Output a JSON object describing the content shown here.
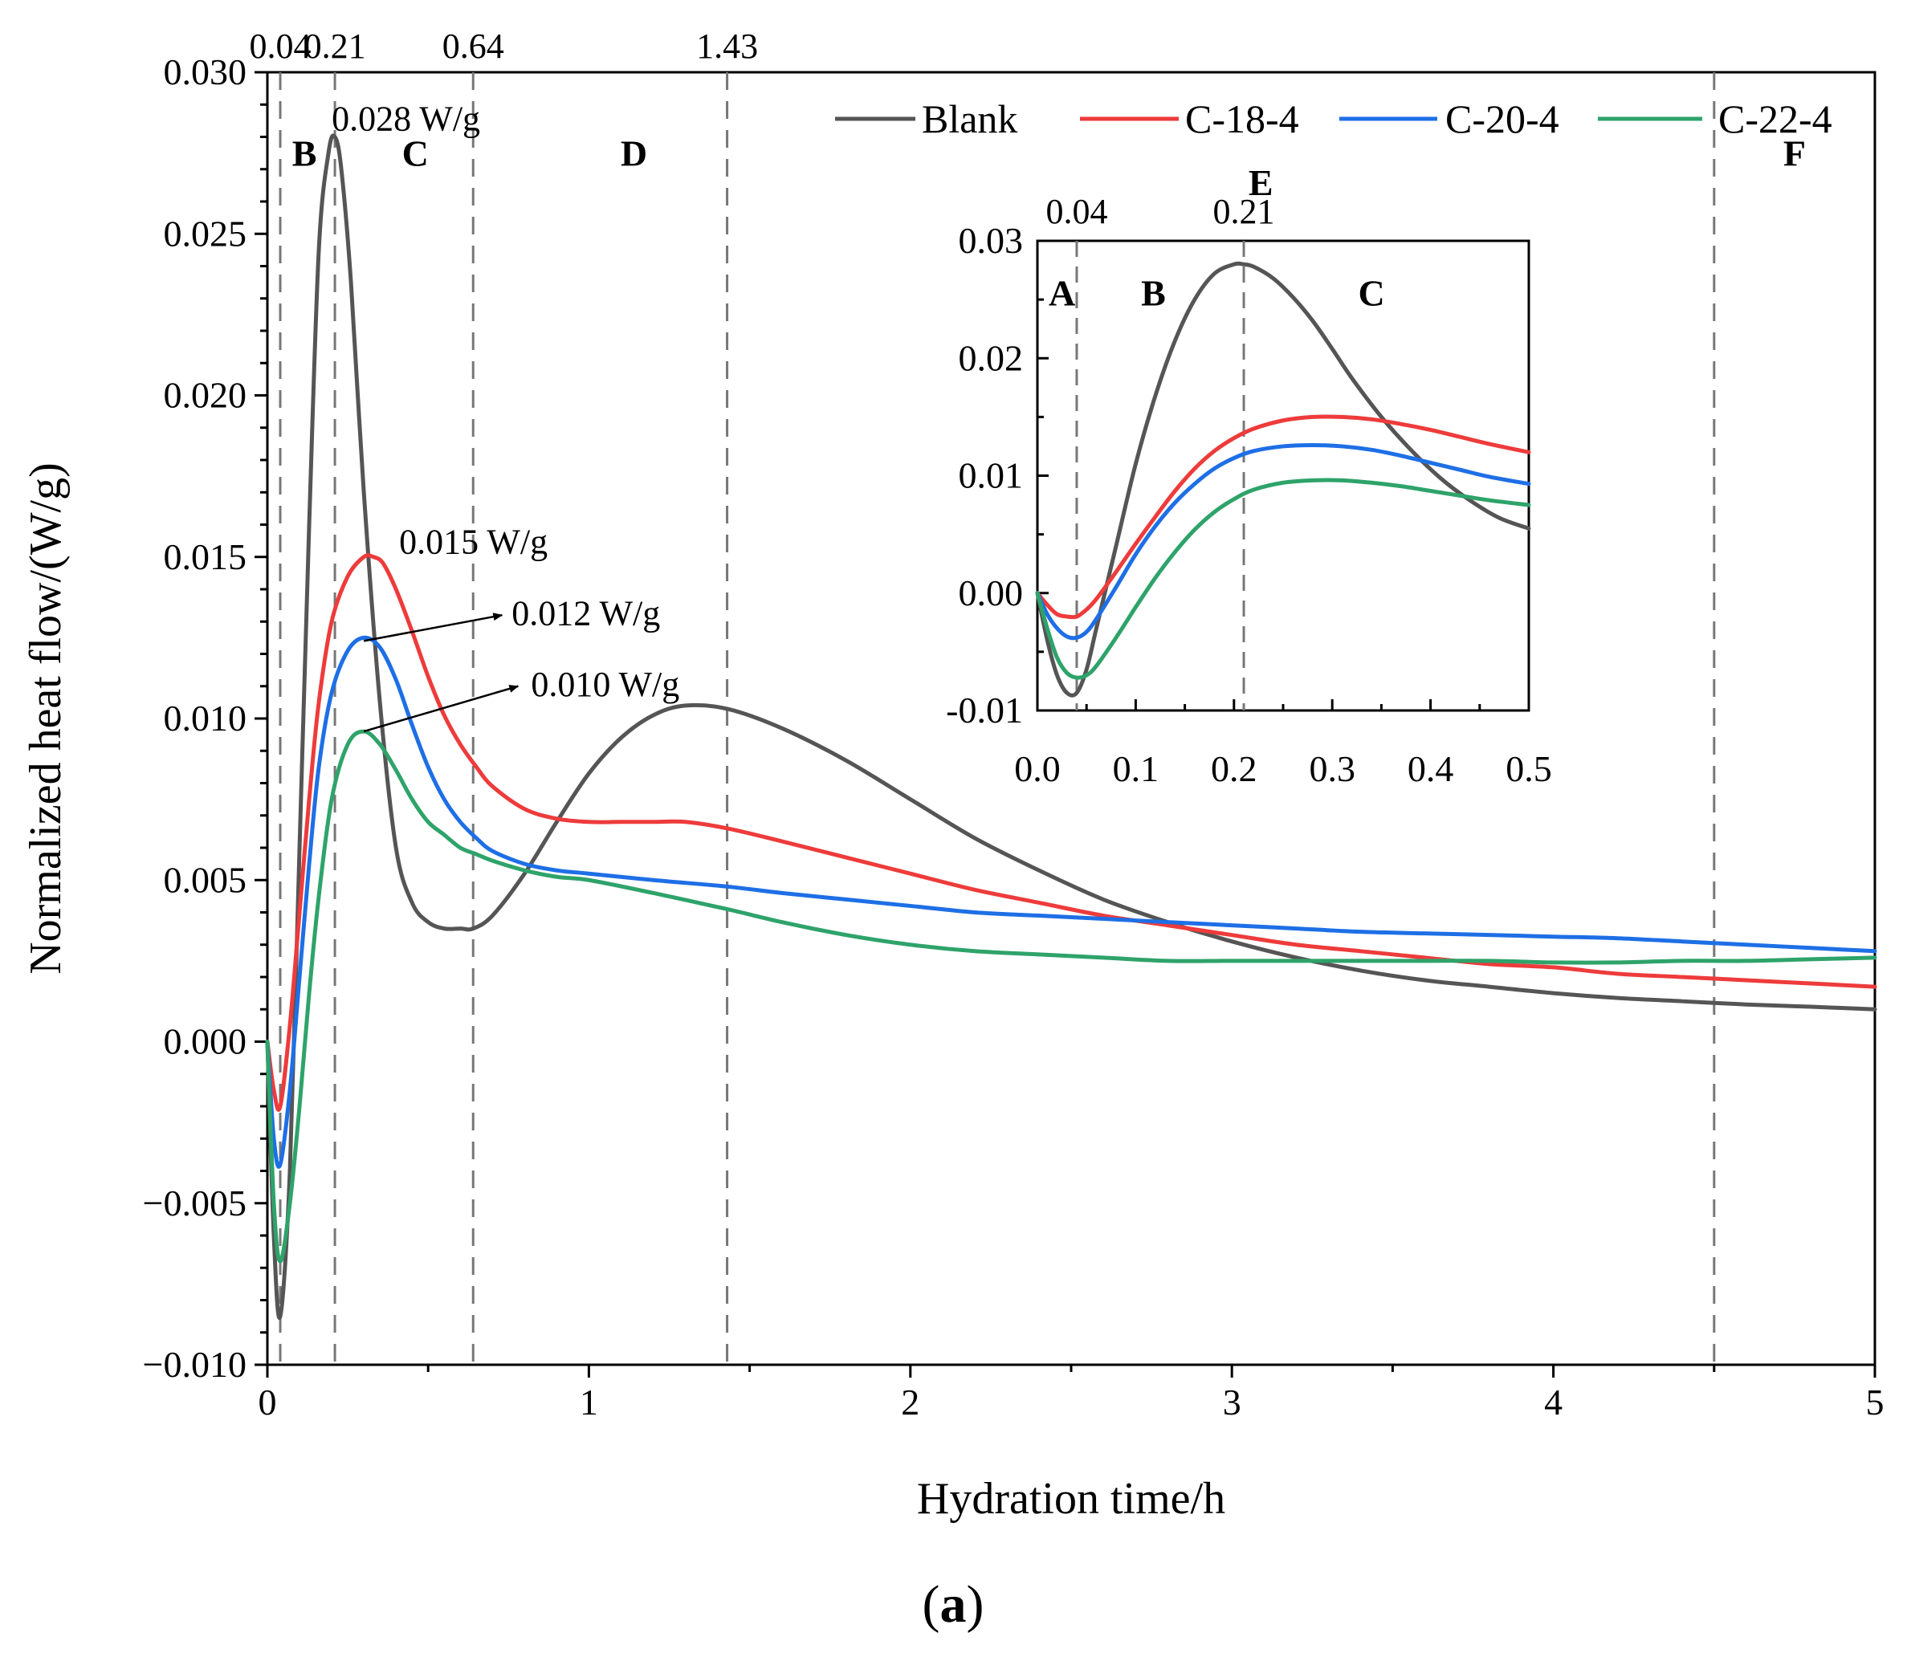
{
  "chart_data": [
    {
      "id": "main",
      "type": "line",
      "xlabel": "Hydration time/h",
      "ylabel": "Normalized heat flow/(W/g)",
      "xlim": [
        0,
        5
      ],
      "ylim": [
        -0.01,
        0.03
      ],
      "x_ticks": [
        0,
        1,
        2,
        3,
        4,
        5
      ],
      "x_tick_labels": [
        "0",
        "1",
        "2",
        "3",
        "4",
        "5"
      ],
      "y_ticks": [
        -0.01,
        -0.005,
        0,
        0.005,
        0.01,
        0.015,
        0.02,
        0.025,
        0.03
      ],
      "y_tick_labels": [
        "−0.010",
        "−0.005",
        "0.000",
        "0.005",
        "0.010",
        "0.015",
        "0.020",
        "0.025",
        "0.030"
      ],
      "vlines": [
        {
          "x": 0.04,
          "label": "0.04"
        },
        {
          "x": 0.21,
          "label": "0.21"
        },
        {
          "x": 0.64,
          "label": "0.64"
        },
        {
          "x": 1.43,
          "label": "1.43"
        },
        {
          "x": 4.5,
          "label": ""
        }
      ],
      "regions": [
        {
          "label": "B",
          "x": 0.115,
          "y": 0.0271
        },
        {
          "label": "C",
          "x": 0.46,
          "y": 0.0271
        },
        {
          "label": "D",
          "x": 1.14,
          "y": 0.0271
        },
        {
          "label": "E",
          "x": 3.09,
          "y": 0.0262
        },
        {
          "label": "F",
          "x": 4.75,
          "y": 0.0271
        }
      ],
      "annotations": [
        {
          "text": "0.028 W/g",
          "x": 0.2,
          "y": 0.0282
        },
        {
          "text": "0.015 W/g",
          "x": 0.41,
          "y": 0.0151
        },
        {
          "text": "0.012 W/g",
          "x": 0.76,
          "y": 0.0129,
          "arrow_from": [
            0.3,
            0.0124
          ],
          "arrow_to": [
            0.73,
            0.0132
          ]
        },
        {
          "text": "0.010 W/g",
          "x": 0.82,
          "y": 0.0107,
          "arrow_from": [
            0.3,
            0.0096
          ],
          "arrow_to": [
            0.78,
            0.011
          ]
        }
      ],
      "legend": {
        "position": "top-right",
        "orientation": "horizontal"
      },
      "series": [
        {
          "name": "Blank",
          "color": "#555555",
          "x": [
            0,
            0.02,
            0.04,
            0.07,
            0.1,
            0.13,
            0.16,
            0.19,
            0.21,
            0.23,
            0.26,
            0.3,
            0.35,
            0.4,
            0.45,
            0.5,
            0.55,
            0.6,
            0.64,
            0.7,
            0.8,
            0.9,
            1.0,
            1.1,
            1.2,
            1.3,
            1.43,
            1.6,
            1.8,
            2.0,
            2.2,
            2.4,
            2.6,
            2.8,
            3.0,
            3.2,
            3.4,
            3.6,
            3.8,
            4.0,
            4.2,
            4.4,
            4.6,
            4.8,
            5.0
          ],
          "y": [
            0.0,
            -0.006,
            -0.0085,
            -0.004,
            0.006,
            0.016,
            0.0245,
            0.0275,
            0.028,
            0.027,
            0.0235,
            0.017,
            0.0105,
            0.006,
            0.0043,
            0.0037,
            0.0035,
            0.0035,
            0.0035,
            0.0039,
            0.0052,
            0.0068,
            0.0083,
            0.0094,
            0.0101,
            0.0104,
            0.0103,
            0.0097,
            0.0087,
            0.0075,
            0.0063,
            0.0053,
            0.0044,
            0.0037,
            0.0031,
            0.0026,
            0.0022,
            0.0019,
            0.0017,
            0.0015,
            0.00135,
            0.00125,
            0.00115,
            0.00108,
            0.001
          ]
        },
        {
          "name": "C-18-4",
          "color": "#ee3b3b",
          "x": [
            0,
            0.02,
            0.04,
            0.07,
            0.1,
            0.13,
            0.16,
            0.2,
            0.25,
            0.3,
            0.33,
            0.36,
            0.4,
            0.45,
            0.5,
            0.55,
            0.6,
            0.65,
            0.7,
            0.8,
            0.9,
            1.0,
            1.1,
            1.2,
            1.3,
            1.43,
            1.6,
            1.8,
            2.0,
            2.2,
            2.4,
            2.6,
            2.8,
            3.0,
            3.2,
            3.4,
            3.6,
            3.8,
            4.0,
            4.2,
            4.4,
            4.6,
            4.8,
            5.0
          ],
          "y": [
            0.0,
            -0.0015,
            -0.002,
            0.0005,
            0.004,
            0.0075,
            0.0105,
            0.013,
            0.0144,
            0.015,
            0.015,
            0.0148,
            0.014,
            0.0127,
            0.0113,
            0.0101,
            0.0092,
            0.0085,
            0.0079,
            0.0072,
            0.0069,
            0.0068,
            0.0068,
            0.0068,
            0.0068,
            0.0066,
            0.0062,
            0.0057,
            0.0052,
            0.0047,
            0.0043,
            0.0039,
            0.0036,
            0.0033,
            0.003,
            0.0028,
            0.0026,
            0.0024,
            0.0023,
            0.0021,
            0.002,
            0.0019,
            0.0018,
            0.0017
          ]
        },
        {
          "name": "C-20-4",
          "color": "#1e6fe6",
          "x": [
            0,
            0.02,
            0.04,
            0.07,
            0.1,
            0.13,
            0.16,
            0.2,
            0.25,
            0.3,
            0.35,
            0.4,
            0.45,
            0.5,
            0.55,
            0.6,
            0.65,
            0.7,
            0.8,
            0.9,
            1.0,
            1.2,
            1.43,
            1.6,
            1.8,
            2.0,
            2.2,
            2.4,
            2.6,
            2.8,
            3.0,
            3.2,
            3.4,
            3.6,
            3.8,
            4.0,
            4.2,
            4.4,
            4.6,
            4.8,
            5.0
          ],
          "y": [
            0.0,
            -0.003,
            -0.0038,
            -0.0015,
            0.002,
            0.0055,
            0.0085,
            0.0108,
            0.0121,
            0.0125,
            0.0122,
            0.0112,
            0.0098,
            0.0085,
            0.0075,
            0.0068,
            0.0063,
            0.0059,
            0.0055,
            0.0053,
            0.0052,
            0.005,
            0.0048,
            0.0046,
            0.0044,
            0.0042,
            0.004,
            0.0039,
            0.0038,
            0.0037,
            0.0036,
            0.0035,
            0.0034,
            0.00335,
            0.0033,
            0.00325,
            0.0032,
            0.0031,
            0.003,
            0.0029,
            0.0028
          ]
        },
        {
          "name": "C-22-4",
          "color": "#2ea36a",
          "x": [
            0,
            0.02,
            0.04,
            0.07,
            0.1,
            0.13,
            0.16,
            0.2,
            0.25,
            0.3,
            0.35,
            0.4,
            0.45,
            0.5,
            0.55,
            0.6,
            0.65,
            0.7,
            0.8,
            0.9,
            1.0,
            1.2,
            1.43,
            1.6,
            1.8,
            2.0,
            2.2,
            2.4,
            2.6,
            2.8,
            3.0,
            3.2,
            3.4,
            3.6,
            3.8,
            4.0,
            4.2,
            4.4,
            4.6,
            4.8,
            5.0
          ],
          "y": [
            0.0,
            -0.005,
            -0.0068,
            -0.005,
            -0.002,
            0.0015,
            0.0045,
            0.0075,
            0.0092,
            0.0096,
            0.0092,
            0.0084,
            0.0075,
            0.0068,
            0.0064,
            0.006,
            0.0058,
            0.0056,
            0.0053,
            0.0051,
            0.005,
            0.0046,
            0.0041,
            0.0037,
            0.0033,
            0.003,
            0.0028,
            0.0027,
            0.0026,
            0.0025,
            0.0025,
            0.0025,
            0.0025,
            0.0025,
            0.0025,
            0.00245,
            0.00245,
            0.0025,
            0.0025,
            0.00255,
            0.0026
          ]
        }
      ]
    },
    {
      "id": "inset",
      "type": "line",
      "xlim": [
        0,
        0.5
      ],
      "ylim": [
        -0.01,
        0.03
      ],
      "x_ticks": [
        0,
        0.1,
        0.2,
        0.3,
        0.4,
        0.5
      ],
      "x_tick_labels": [
        "0.0",
        "0.1",
        "0.2",
        "0.3",
        "0.4",
        "0.5"
      ],
      "y_ticks": [
        -0.01,
        0,
        0.01,
        0.02,
        0.03
      ],
      "y_tick_labels": [
        "-0.01",
        "0.00",
        "0.01",
        "0.02",
        "0.03"
      ],
      "vlines": [
        {
          "x": 0.04,
          "label": "0.04"
        },
        {
          "x": 0.21,
          "label": "0.21"
        }
      ],
      "regions": [
        {
          "label": "A",
          "x": 0.025,
          "y": 0.0245
        },
        {
          "label": "B",
          "x": 0.118,
          "y": 0.0245
        },
        {
          "label": "C",
          "x": 0.34,
          "y": 0.0245
        }
      ],
      "series": [
        {
          "name": "Blank",
          "color": "#555555",
          "x": [
            0,
            0.01,
            0.02,
            0.03,
            0.04,
            0.05,
            0.06,
            0.08,
            0.1,
            0.12,
            0.14,
            0.16,
            0.18,
            0.2,
            0.21,
            0.22,
            0.24,
            0.26,
            0.28,
            0.3,
            0.32,
            0.35,
            0.38,
            0.41,
            0.44,
            0.47,
            0.5
          ],
          "y": [
            0.0,
            -0.004,
            -0.007,
            -0.0085,
            -0.0085,
            -0.0065,
            -0.003,
            0.004,
            0.011,
            0.0168,
            0.0215,
            0.025,
            0.0272,
            0.028,
            0.028,
            0.0278,
            0.0268,
            0.0252,
            0.0232,
            0.0208,
            0.0183,
            0.015,
            0.0122,
            0.0098,
            0.0079,
            0.0064,
            0.0055
          ]
        },
        {
          "name": "C-18-4",
          "color": "#ee3b3b",
          "x": [
            0,
            0.01,
            0.02,
            0.03,
            0.04,
            0.05,
            0.06,
            0.08,
            0.1,
            0.12,
            0.14,
            0.16,
            0.18,
            0.2,
            0.22,
            0.25,
            0.28,
            0.31,
            0.34,
            0.37,
            0.4,
            0.43,
            0.46,
            0.5
          ],
          "y": [
            0.0,
            -0.001,
            -0.0018,
            -0.002,
            -0.002,
            -0.0014,
            -0.0005,
            0.0018,
            0.0042,
            0.0065,
            0.0087,
            0.0106,
            0.0121,
            0.0132,
            0.014,
            0.0147,
            0.015,
            0.015,
            0.0148,
            0.0144,
            0.0139,
            0.0133,
            0.0127,
            0.012
          ]
        },
        {
          "name": "C-20-4",
          "color": "#1e6fe6",
          "x": [
            0,
            0.01,
            0.02,
            0.03,
            0.04,
            0.05,
            0.06,
            0.08,
            0.1,
            0.12,
            0.14,
            0.16,
            0.18,
            0.2,
            0.22,
            0.25,
            0.28,
            0.31,
            0.34,
            0.37,
            0.4,
            0.43,
            0.46,
            0.5
          ],
          "y": [
            0.0,
            -0.0018,
            -0.003,
            -0.0037,
            -0.0038,
            -0.0033,
            -0.0022,
            0.0005,
            0.0033,
            0.0057,
            0.0077,
            0.0093,
            0.0106,
            0.0115,
            0.0121,
            0.0125,
            0.0126,
            0.0125,
            0.0122,
            0.0117,
            0.0111,
            0.0105,
            0.0099,
            0.0093
          ]
        },
        {
          "name": "C-22-4",
          "color": "#2ea36a",
          "x": [
            0,
            0.01,
            0.02,
            0.03,
            0.04,
            0.05,
            0.06,
            0.08,
            0.1,
            0.12,
            0.14,
            0.16,
            0.18,
            0.2,
            0.22,
            0.25,
            0.28,
            0.31,
            0.34,
            0.37,
            0.4,
            0.43,
            0.46,
            0.5
          ],
          "y": [
            0.0,
            -0.003,
            -0.0055,
            -0.0068,
            -0.0072,
            -0.007,
            -0.0062,
            -0.0038,
            -0.0012,
            0.0013,
            0.0035,
            0.0054,
            0.0069,
            0.008,
            0.0088,
            0.0094,
            0.0096,
            0.0096,
            0.0094,
            0.0091,
            0.0087,
            0.0083,
            0.0079,
            0.0075
          ]
        }
      ]
    }
  ],
  "caption": {
    "open": "(",
    "letter": "a",
    "close": ")"
  }
}
